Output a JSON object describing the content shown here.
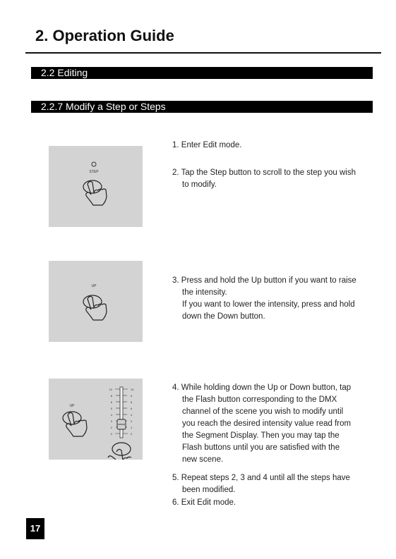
{
  "header": {
    "title": "2. Operation Guide"
  },
  "sections": {
    "editing": "2.2  Editing",
    "modify": "2.2.7  Modify a Step or Steps"
  },
  "panels": {
    "step_label": "STEP",
    "up_label": "UP",
    "up_label_2": "UP",
    "fader_scale_left": [
      "10",
      "8",
      "6",
      "5",
      "4",
      "3",
      "2",
      "0"
    ],
    "fader_scale_right": [
      "10",
      "9",
      "8",
      "6",
      "4",
      "2",
      "1",
      "0"
    ]
  },
  "steps": {
    "s1": "1. Enter Edit mode.",
    "s2_a": "2. Tap the Step button to scroll to the step you wish",
    "s2_b": "to modify.",
    "s3_a": "3. Press and hold the Up button if you want to raise",
    "s3_b": "the intensity.",
    "s3_c": "If you want to lower the intensity, press and hold",
    "s3_d": "down the Down button.",
    "s4_a": "4. While holding down the Up or Down button, tap",
    "s4_b": "the Flash button corresponding to the DMX",
    "s4_c": "channel of the scene you wish to modify until",
    "s4_d": "you reach the desired intensity value read from",
    "s4_e": "the Segment Display.  Then you may tap the",
    "s4_f": "Flash buttons until you are satisfied with the",
    "s4_g": "new scene.",
    "s5_a": "5. Repeat steps 2, 3 and 4 until all the steps have",
    "s5_b": "been modified.",
    "s6": "6. Exit Edit mode."
  },
  "footer": {
    "page_number": "17"
  }
}
